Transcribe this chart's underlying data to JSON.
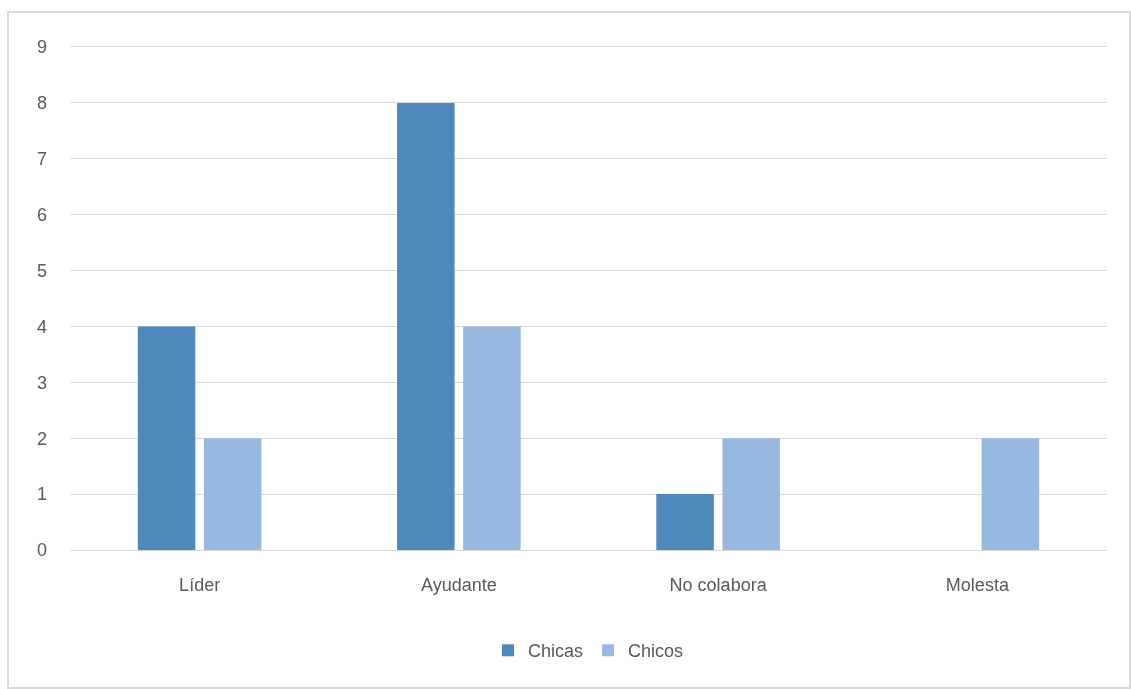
{
  "chart_data": {
    "type": "bar",
    "categories": [
      "Líder",
      "Ayudante",
      "No colabora",
      "Molesta"
    ],
    "series": [
      {
        "name": "Chicas",
        "color": "#4f88bb",
        "values": [
          4,
          8,
          1,
          null
        ]
      },
      {
        "name": "Chicos",
        "color": "#98b9df",
        "values": [
          2,
          4,
          2,
          2
        ]
      }
    ],
    "ylim": [
      0,
      9
    ],
    "yticks": [
      0,
      1,
      2,
      3,
      4,
      5,
      6,
      7,
      8,
      9
    ],
    "grid": "y",
    "legend": "bottom"
  }
}
